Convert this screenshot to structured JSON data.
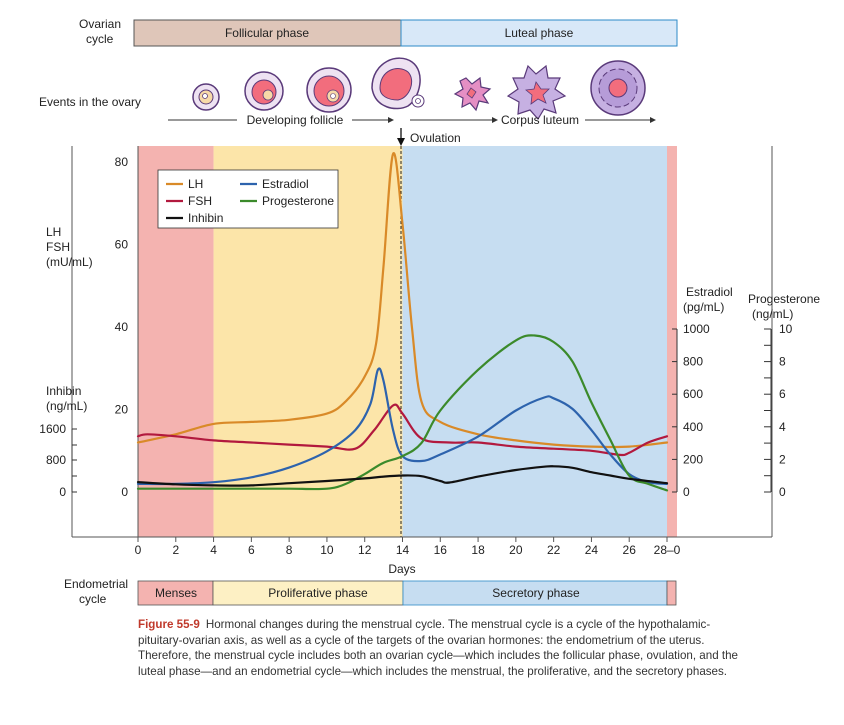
{
  "colors": {
    "lh": "#d98a28",
    "fsh": "#b2193e",
    "estradiol": "#2d63ad",
    "progesterone": "#3b8a2b",
    "inhibin": "#111111",
    "menses_bg": "#f4b3b0",
    "follicular_bg": "#fce5a9",
    "luteal_bg": "#c6ddf1",
    "follicular_bar": "#dfc6b9",
    "luteal_bar": "#d8e8f8",
    "proliferative_bar": "#fdf0c4"
  },
  "ovarian_cycle": {
    "label_line1": "Ovarian",
    "label_line2": "cycle",
    "follicular": "Follicular phase",
    "luteal": "Luteal phase"
  },
  "ovary_events": {
    "label": "Events in the ovary",
    "developing": "Developing follicle",
    "corpus": "Corpus luteum",
    "ovulation": "Ovulation"
  },
  "endometrial_cycle": {
    "label_line1": "Endometrial",
    "label_line2": "cycle",
    "menses": "Menses",
    "proliferative": "Proliferative phase",
    "secretory": "Secretory phase"
  },
  "caption": {
    "fig": "Figure 55-9",
    "text": "Hormonal changes during the menstrual cycle. The menstrual cycle is a cycle of the hypothalamic-pituitary-ovarian axis, as well as a cycle of the targets of the ovarian hormones: the endometrium of the uterus. Therefore, the menstrual cycle includes both an ovarian cycle—which includes the follicular phase, ovulation, and the luteal phase—and an endometrial cycle—which includes the menstrual, the proliferative, and the secretory phases."
  },
  "chart_data": {
    "type": "line",
    "xlabel": "Days",
    "x_ticks": [
      "0",
      "2",
      "4",
      "6",
      "8",
      "10",
      "12",
      "14",
      "16",
      "18",
      "20",
      "22",
      "24",
      "26",
      "28–0"
    ],
    "xlim": [
      0,
      28
    ],
    "axes": {
      "lh_fsh": {
        "label": [
          "LH",
          "FSH",
          "(mU/mL)"
        ],
        "ticks": [
          0,
          20,
          40,
          60,
          80
        ]
      },
      "inhibin": {
        "label": [
          "Inhibin",
          "(ng/mL)"
        ],
        "ticks": [
          "0",
          "800",
          "1600"
        ]
      },
      "estradiol": {
        "label": [
          "Estradiol",
          "(pg/mL)"
        ],
        "ticks": [
          0,
          200,
          400,
          600,
          800,
          1000
        ]
      },
      "progesterone": {
        "label": [
          "Progesterone",
          "(ng/mL)"
        ],
        "ticks": [
          0,
          2,
          4,
          6,
          8,
          10
        ]
      }
    },
    "legend": [
      "LH",
      "Estradiol",
      "FSH",
      "Progesterone",
      "Inhibin"
    ],
    "series": [
      {
        "name": "LH",
        "axis": "lh_fsh",
        "points": [
          [
            0,
            12
          ],
          [
            2,
            14
          ],
          [
            4,
            16.5
          ],
          [
            6,
            17
          ],
          [
            8,
            17.5
          ],
          [
            10,
            19
          ],
          [
            11,
            22
          ],
          [
            12,
            28
          ],
          [
            12.6,
            36
          ],
          [
            13,
            55
          ],
          [
            13.5,
            82
          ],
          [
            14,
            65
          ],
          [
            14.5,
            40
          ],
          [
            15,
            22
          ],
          [
            16,
            17
          ],
          [
            18,
            14
          ],
          [
            20,
            12.5
          ],
          [
            22,
            11.5
          ],
          [
            24,
            11
          ],
          [
            26,
            11
          ],
          [
            28,
            12
          ]
        ]
      },
      {
        "name": "FSH",
        "axis": "lh_fsh",
        "points": [
          [
            0,
            13.5
          ],
          [
            0.5,
            14
          ],
          [
            2,
            13.5
          ],
          [
            4,
            12.5
          ],
          [
            6,
            12
          ],
          [
            8,
            11.5
          ],
          [
            10,
            11
          ],
          [
            11.5,
            10.5
          ],
          [
            12.5,
            15
          ],
          [
            13.5,
            21
          ],
          [
            14,
            19
          ],
          [
            15,
            13
          ],
          [
            16.5,
            12
          ],
          [
            18,
            12
          ],
          [
            20,
            11
          ],
          [
            22,
            10.5
          ],
          [
            24,
            10
          ],
          [
            25.5,
            9
          ],
          [
            26,
            9.5
          ],
          [
            27,
            12
          ],
          [
            28,
            13.5
          ]
        ]
      },
      {
        "name": "Estradiol",
        "axis": "estradiol",
        "points": [
          [
            0,
            50
          ],
          [
            2,
            50
          ],
          [
            4,
            60
          ],
          [
            6,
            90
          ],
          [
            8,
            150
          ],
          [
            10,
            250
          ],
          [
            11.5,
            380
          ],
          [
            12.3,
            540
          ],
          [
            12.7,
            750
          ],
          [
            13,
            680
          ],
          [
            13.5,
            380
          ],
          [
            14,
            220
          ],
          [
            15,
            190
          ],
          [
            16,
            230
          ],
          [
            18,
            340
          ],
          [
            20,
            500
          ],
          [
            21.5,
            580
          ],
          [
            22,
            575
          ],
          [
            23,
            510
          ],
          [
            24,
            380
          ],
          [
            25,
            230
          ],
          [
            26,
            110
          ],
          [
            27,
            60
          ],
          [
            28,
            50
          ]
        ]
      },
      {
        "name": "Progesterone",
        "axis": "progesterone",
        "points": [
          [
            0,
            0.2
          ],
          [
            2,
            0.2
          ],
          [
            4,
            0.2
          ],
          [
            6,
            0.2
          ],
          [
            8,
            0.2
          ],
          [
            10,
            0.2
          ],
          [
            11,
            0.5
          ],
          [
            12,
            1.1
          ],
          [
            13,
            1.8
          ],
          [
            14,
            2.2
          ],
          [
            15,
            3
          ],
          [
            16,
            5
          ],
          [
            18,
            7.5
          ],
          [
            20,
            9.3
          ],
          [
            21,
            9.6
          ],
          [
            22,
            9.2
          ],
          [
            23,
            8
          ],
          [
            24,
            5.5
          ],
          [
            25,
            3.2
          ],
          [
            26,
            1
          ],
          [
            27,
            0.5
          ],
          [
            28,
            0.1
          ]
        ]
      },
      {
        "name": "Inhibin",
        "axis": "inhibin",
        "points": [
          [
            0,
            4.5
          ],
          [
            2,
            3.5
          ],
          [
            4,
            3
          ],
          [
            6,
            3
          ],
          [
            8,
            4
          ],
          [
            10,
            5
          ],
          [
            12,
            6.2
          ],
          [
            13,
            7
          ],
          [
            14,
            7.5
          ],
          [
            15,
            7.2
          ],
          [
            16,
            5
          ],
          [
            16.5,
            4.3
          ],
          [
            18,
            7
          ],
          [
            20,
            10
          ],
          [
            21.5,
            11.5
          ],
          [
            22,
            11.7
          ],
          [
            23,
            11
          ],
          [
            24,
            9
          ],
          [
            25,
            7.5
          ],
          [
            26,
            6
          ],
          [
            28,
            4
          ]
        ]
      }
    ]
  }
}
